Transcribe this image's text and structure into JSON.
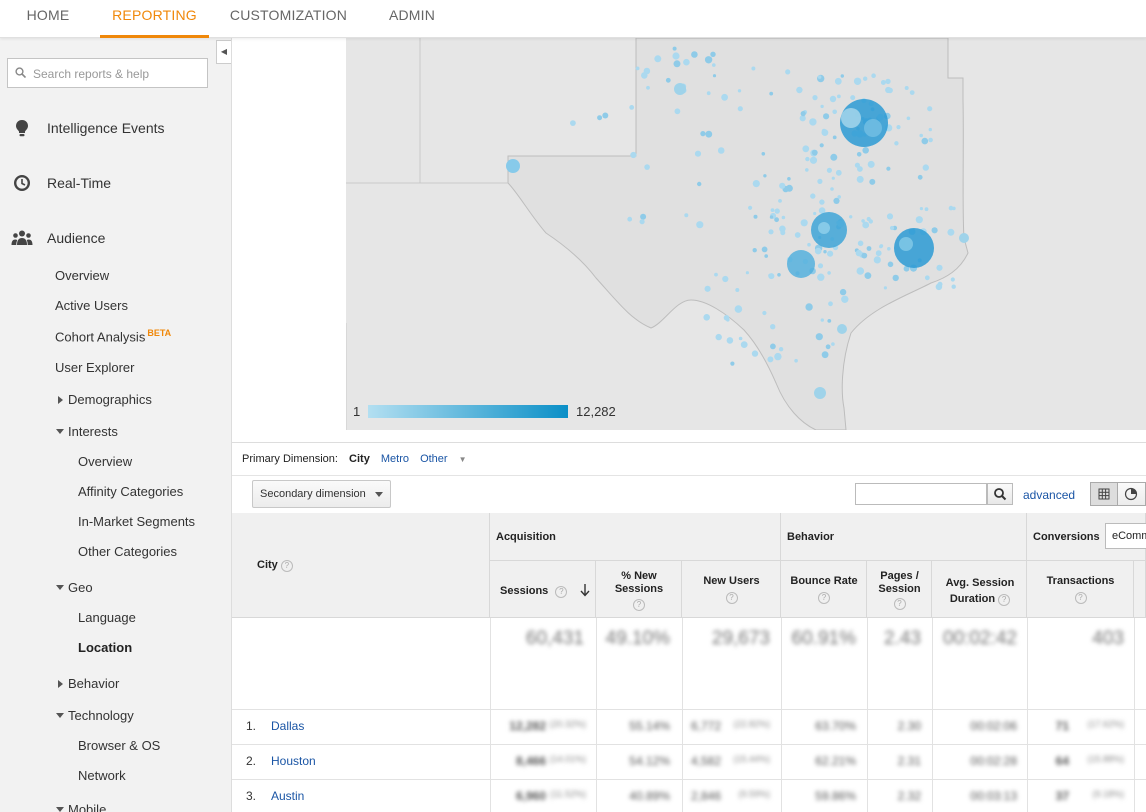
{
  "topnav": {
    "tabs": [
      "HOME",
      "REPORTING",
      "CUSTOMIZATION",
      "ADMIN"
    ],
    "active": "REPORTING"
  },
  "sidebar": {
    "search_placeholder": "Search reports & help",
    "sections": {
      "intelligence": "Intelligence Events",
      "realtime": "Real-Time",
      "audience": "Audience"
    },
    "audience_items": {
      "overview": "Overview",
      "active_users": "Active Users",
      "cohort": "Cohort Analysis",
      "cohort_badge": "BETA",
      "user_explorer": "User Explorer",
      "demographics": "Demographics",
      "interests": "Interests",
      "interests_overview": "Overview",
      "affinity": "Affinity Categories",
      "in_market": "In-Market Segments",
      "other_categories": "Other Categories",
      "geo": "Geo",
      "language": "Language",
      "location": "Location",
      "behavior": "Behavior",
      "technology": "Technology",
      "browser_os": "Browser & OS",
      "network": "Network",
      "mobile": "Mobile"
    }
  },
  "map": {
    "legend_min": "1",
    "legend_max": "12,282",
    "colors": {
      "light": "#b3dff1",
      "dark": "#0a8fc7",
      "land": "#e6e6e6",
      "border": "#c9c9c9"
    }
  },
  "dimension": {
    "label": "Primary Dimension:",
    "city": "City",
    "metro": "Metro",
    "other": "Other",
    "secondary": "Secondary dimension",
    "advanced": "advanced"
  },
  "table": {
    "city_header": "City",
    "groups": {
      "acquisition": "Acquisition",
      "behavior": "Behavior",
      "conversions": "Conversions",
      "conversions_select": "eComm"
    },
    "columns": {
      "sessions": "Sessions",
      "new_sessions": "% New Sessions",
      "new_users": "New Users",
      "bounce_rate": "Bounce Rate",
      "pages_session": "Pages / Session",
      "avg_duration": "Avg. Session Duration",
      "transactions": "Transactions"
    },
    "summary": {
      "sessions": "60,431",
      "new_sessions": "49.10%",
      "new_users": "29,673",
      "bounce_rate": "60.91%",
      "pages_session": "2.43",
      "avg_duration": "00:02:42",
      "transactions": "403"
    },
    "rows": [
      {
        "rank": "1.",
        "city": "Dallas",
        "sessions": "12,282",
        "sessions_pct": "(20.32%)",
        "new_sessions": "55.14%",
        "new_users": "6,772",
        "new_users_pct": "(22.82%)",
        "bounce_rate": "63.70%",
        "pages_session": "2.30",
        "avg_duration": "00:02:06",
        "transactions": "71",
        "transactions_pct": "(17.62%)"
      },
      {
        "rank": "2.",
        "city": "Houston",
        "sessions": "8,466",
        "sessions_pct": "(14.01%)",
        "new_sessions": "54.12%",
        "new_users": "4,582",
        "new_users_pct": "(15.44%)",
        "bounce_rate": "62.21%",
        "pages_session": "2.31",
        "avg_duration": "00:02:28",
        "transactions": "64",
        "transactions_pct": "(15.88%)"
      },
      {
        "rank": "3.",
        "city": "Austin",
        "sessions": "6,960",
        "sessions_pct": "(11.52%)",
        "new_sessions": "40.89%",
        "new_users": "2,846",
        "new_users_pct": "(9.59%)",
        "bounce_rate": "59.86%",
        "pages_session": "2.32",
        "avg_duration": "00:03:13",
        "transactions": "37",
        "transactions_pct": "(9.18%)"
      }
    ]
  }
}
